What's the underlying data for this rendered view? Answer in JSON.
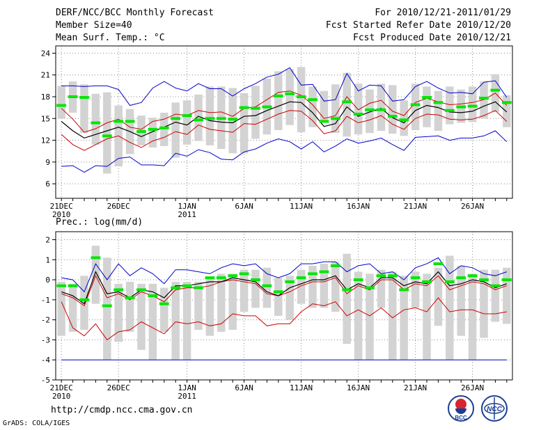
{
  "header": {
    "title": "DERF/NCC/BCC Monthly Forecast",
    "member_size": "Member Size=40",
    "variable": "Mean Surf. Temp.: °C",
    "forecast_period": "For 2010/12/21-2011/01/29",
    "started_refer": "Fcst Started Refer Date 2010/12/20",
    "produced": "Fcst Produced Date 2010/12/21"
  },
  "footer": {
    "url": "http://cmdp.ncc.cma.gov.cn",
    "credit": "GrADS: COLA/IGES",
    "logo_bcc_text": "BCC",
    "logo_ncc_text": "NCC"
  },
  "colors": {
    "box": "#d3d3d3",
    "median": "#00e600",
    "mean": "#000000",
    "upper": "#0000cc",
    "inner": "#cc0000",
    "grid": "#888888"
  },
  "chart_data": [
    {
      "type": "line",
      "title": "Mean Surf. Temp.: °C",
      "days": 40,
      "x_ticks": [
        {
          "day": 0,
          "label": "21DEC",
          "sub": "2010"
        },
        {
          "day": 5,
          "label": "26DEC",
          "sub": ""
        },
        {
          "day": 11,
          "label": "1JAN",
          "sub": "2011"
        },
        {
          "day": 16,
          "label": "6JAN",
          "sub": ""
        },
        {
          "day": 21,
          "label": "11JAN",
          "sub": ""
        },
        {
          "day": 26,
          "label": "16JAN",
          "sub": ""
        },
        {
          "day": 31,
          "label": "21JAN",
          "sub": ""
        },
        {
          "day": 36,
          "label": "26JAN",
          "sub": ""
        }
      ],
      "ylim": [
        4,
        25
      ],
      "yticks": [
        6,
        9,
        12,
        15,
        18,
        21,
        24
      ],
      "box_low": [
        15,
        15.8,
        13,
        11.4,
        7.4,
        8.4,
        10.1,
        11.3,
        11,
        11.2,
        9.6,
        11.4,
        11.9,
        11.3,
        10.8,
        10.2,
        10.2,
        12.2,
        12.8,
        13.4,
        14.1,
        13.1,
        13.8,
        14.5,
        13,
        12.5,
        12.8,
        13,
        13.3,
        12.9,
        12.6,
        13.4,
        13.8,
        13.3,
        14.2,
        14.4,
        14.5,
        15,
        15.9,
        13.8
      ],
      "box_high": [
        19.5,
        20.1,
        19.7,
        18.4,
        18.6,
        16.8,
        16.3,
        15.4,
        15.1,
        15.8,
        17.2,
        17.5,
        18.3,
        19.4,
        19.4,
        19.2,
        18.5,
        19.5,
        20.5,
        21.5,
        21.8,
        22.1,
        19.4,
        18.8,
        19.7,
        21.3,
        19.8,
        19,
        19.8,
        19.6,
        17.5,
        19.8,
        19.4,
        18.8,
        19.4,
        19,
        19.4,
        20.1,
        21.1,
        18.2
      ],
      "median": [
        16.8,
        18,
        17.9,
        14.4,
        12.6,
        14.6,
        14.6,
        13.2,
        13.5,
        13.7,
        15,
        15.4,
        14.8,
        15,
        15,
        14.9,
        16.5,
        16.4,
        16.6,
        18.1,
        18.4,
        18,
        17.6,
        14.6,
        15,
        17.3,
        15.6,
        16.2,
        16.2,
        15.3,
        14.8,
        16.9,
        17.9,
        17.2,
        16.1,
        16.6,
        16.7,
        17.8,
        18.9,
        17.2
      ],
      "mean": [
        14.6,
        13.3,
        12.3,
        12.8,
        13.3,
        13.8,
        13.2,
        12.5,
        13.2,
        13.8,
        14.5,
        14.1,
        15.3,
        14.7,
        14.5,
        14.4,
        15.3,
        15.4,
        16.1,
        16.7,
        17.3,
        17.2,
        15.8,
        13.9,
        14.3,
        16.6,
        15.3,
        15.9,
        16.4,
        15.1,
        14.4,
        16.1,
        16.8,
        16.5,
        15.9,
        15.8,
        16,
        16.7,
        17.3,
        15.9
      ],
      "upper": [
        19.5,
        19.5,
        19.4,
        19.5,
        19.5,
        19,
        16.8,
        17.2,
        19.2,
        20.1,
        19.2,
        18.8,
        19.8,
        19.1,
        19.1,
        18.1,
        19.1,
        19.8,
        20.7,
        21.1,
        22,
        19.6,
        19.7,
        17.4,
        17.6,
        21.2,
        18.8,
        19.6,
        19.5,
        17.4,
        17.6,
        19.4,
        20.1,
        19.2,
        18.5,
        18.6,
        18.4,
        20,
        20.2,
        17.9
      ],
      "upper_in": [
        16.4,
        14.9,
        13.1,
        13.6,
        14.4,
        14.9,
        13.8,
        13.5,
        14.6,
        14.9,
        15.6,
        15.4,
        16.1,
        15.8,
        15.9,
        15.3,
        16.4,
        16.6,
        17.6,
        18.6,
        18.8,
        18.2,
        16.9,
        15,
        15.4,
        18,
        16.2,
        17.1,
        17.5,
        16,
        15.4,
        17.2,
        17.8,
        17.3,
        16.9,
        17,
        17.2,
        17.6,
        18.5,
        16.8
      ],
      "lower_in": [
        12.8,
        11.4,
        10.6,
        11.4,
        12.2,
        12.6,
        11.7,
        11,
        11.9,
        12.4,
        13.2,
        12.8,
        14.1,
        13.5,
        13.3,
        13.1,
        14.3,
        14.2,
        14.9,
        15.6,
        16.1,
        16,
        14.7,
        12.9,
        13.3,
        15.3,
        14.4,
        14.8,
        15.4,
        14.2,
        13.5,
        15,
        15.6,
        15.5,
        14.9,
        14.8,
        14.9,
        15.4,
        16.1,
        14.6
      ],
      "lower": [
        8.4,
        8.5,
        7.6,
        8.5,
        8.4,
        9.5,
        9.7,
        8.6,
        8.6,
        8.5,
        10.2,
        9.8,
        10.7,
        10.3,
        9.4,
        9.3,
        10.4,
        10.8,
        11.6,
        12.2,
        11.8,
        10.8,
        11.8,
        10.4,
        11.2,
        12.2,
        11.6,
        11.9,
        12.3,
        11.4,
        10.6,
        12.4,
        12.5,
        12.6,
        12,
        12.3,
        12.3,
        12.6,
        13.3,
        11.8
      ]
    },
    {
      "type": "line",
      "title": "Prec.: log(mm/d)",
      "days": 40,
      "x_ticks": [
        {
          "day": 0,
          "label": "21DEC",
          "sub": "2010"
        },
        {
          "day": 5,
          "label": "26DEC",
          "sub": ""
        },
        {
          "day": 11,
          "label": "1JAN",
          "sub": "2011"
        },
        {
          "day": 16,
          "label": "6JAN",
          "sub": ""
        },
        {
          "day": 21,
          "label": "11JAN",
          "sub": ""
        },
        {
          "day": 26,
          "label": "16JAN",
          "sub": ""
        },
        {
          "day": 31,
          "label": "21JAN",
          "sub": ""
        },
        {
          "day": 36,
          "label": "26JAN",
          "sub": ""
        }
      ],
      "ylim": [
        -5,
        2.4
      ],
      "yticks": [
        -5,
        -4,
        -3,
        -2,
        -1,
        0,
        1,
        2
      ],
      "box_low": [
        -2.8,
        -2.6,
        -2.5,
        -1.2,
        -4,
        -3.1,
        -2.6,
        -3.5,
        -4,
        -2.6,
        -4,
        -4,
        -2.5,
        -2.8,
        -2.6,
        -2.5,
        -1.6,
        -1.4,
        -1.4,
        -1.8,
        -2,
        -1.2,
        -1.4,
        -1.4,
        -1.6,
        -3.2,
        -4,
        -4,
        -1.4,
        -4,
        -4,
        -1.4,
        -4,
        -2.3,
        -4,
        -2.8,
        -4,
        -2.9,
        -2.1,
        -2.2
      ],
      "box_high": [
        -0.1,
        -0.2,
        0.2,
        1.7,
        1.1,
        -0.2,
        -0.1,
        -0.2,
        -0.2,
        -0.4,
        -0.1,
        -0.1,
        -0.1,
        0.1,
        0.3,
        0.3,
        0.5,
        0.5,
        0.6,
        0.1,
        0.2,
        0.5,
        0.7,
        0.8,
        0.9,
        1.3,
        0.4,
        0.3,
        0.5,
        0.4,
        0.2,
        0.4,
        0.3,
        0.6,
        1.2,
        0.7,
        0.3,
        0.5,
        0.5,
        0.6
      ],
      "median": [
        -0.3,
        -0.3,
        -1,
        1.1,
        -1.3,
        -0.5,
        -0.9,
        -0.5,
        -0.8,
        -1.2,
        -0.4,
        -0.3,
        -0.4,
        0.1,
        0.1,
        0.2,
        0.3,
        0,
        -0.3,
        -0.6,
        -0.1,
        0.1,
        0.3,
        0.4,
        0.7,
        -0.5,
        0,
        -0.4,
        0.2,
        0.2,
        -0.5,
        0.1,
        -0.1,
        0.8,
        -0.1,
        0.1,
        0.2,
        0,
        -0.3,
        0
      ],
      "mean": [
        -0.6,
        -0.8,
        -1.2,
        0.4,
        -0.7,
        -0.6,
        -0.9,
        -0.5,
        -0.6,
        -0.9,
        -0.3,
        -0.3,
        -0.2,
        -0.1,
        -0.1,
        0.1,
        0,
        -0.1,
        -0.6,
        -0.8,
        -0.4,
        -0.2,
        0,
        0,
        0.2,
        -0.5,
        -0.2,
        -0.4,
        0.1,
        0.1,
        -0.3,
        -0.1,
        -0.2,
        0.4,
        -0.3,
        -0.2,
        0,
        -0.1,
        -0.4,
        -0.2
      ],
      "upper": [
        0.1,
        0,
        -0.6,
        0.8,
        0,
        0.8,
        0.2,
        0.6,
        0.3,
        -0.2,
        0.5,
        0.5,
        0.4,
        0.3,
        0.6,
        0.8,
        0.7,
        0.8,
        0.3,
        0.1,
        0.3,
        0.8,
        0.8,
        0.9,
        0.9,
        0.4,
        0.7,
        0.8,
        0.3,
        0.4,
        0,
        0.6,
        0.8,
        1.1,
        0.3,
        0.7,
        0.6,
        0.3,
        0.2,
        0.4
      ],
      "upper_in": [
        -0.7,
        -0.9,
        -1.3,
        0.2,
        -0.9,
        -0.7,
        -1,
        -0.6,
        -0.8,
        -1.1,
        -0.5,
        -0.4,
        -0.4,
        -0.3,
        -0.1,
        0,
        -0.1,
        -0.2,
        -0.7,
        -0.8,
        -0.6,
        -0.3,
        -0.1,
        -0.1,
        0.1,
        -0.7,
        -0.3,
        -0.5,
        0,
        0,
        -0.5,
        -0.2,
        -0.3,
        0.2,
        -0.5,
        -0.3,
        -0.1,
        -0.2,
        -0.5,
        -0.3
      ],
      "lower_in": [
        -1.1,
        -2.4,
        -2.8,
        -2.2,
        -3,
        -2.6,
        -2.5,
        -2.1,
        -2.4,
        -2.7,
        -2.1,
        -2.2,
        -2.1,
        -2.3,
        -2.2,
        -1.7,
        -1.8,
        -1.8,
        -2.3,
        -2.2,
        -2.2,
        -1.6,
        -1.2,
        -1.3,
        -1.1,
        -1.8,
        -1.5,
        -1.8,
        -1.4,
        -1.9,
        -1.5,
        -1.4,
        -1.6,
        -0.9,
        -1.6,
        -1.5,
        -1.5,
        -1.7,
        -1.7,
        -1.6
      ],
      "lower": [
        -4,
        -4,
        -4,
        -4,
        -4,
        -4,
        -4,
        -4,
        -4,
        -4,
        -4,
        -4,
        -4,
        -4,
        -4,
        -4,
        -4,
        -4,
        -4,
        -4,
        -4,
        -4,
        -4,
        -4,
        -4,
        -4,
        -4,
        -4,
        -4,
        -4,
        -4,
        -4,
        -4,
        -4,
        -4,
        -4,
        -4,
        -4,
        -4,
        -4
      ]
    }
  ]
}
